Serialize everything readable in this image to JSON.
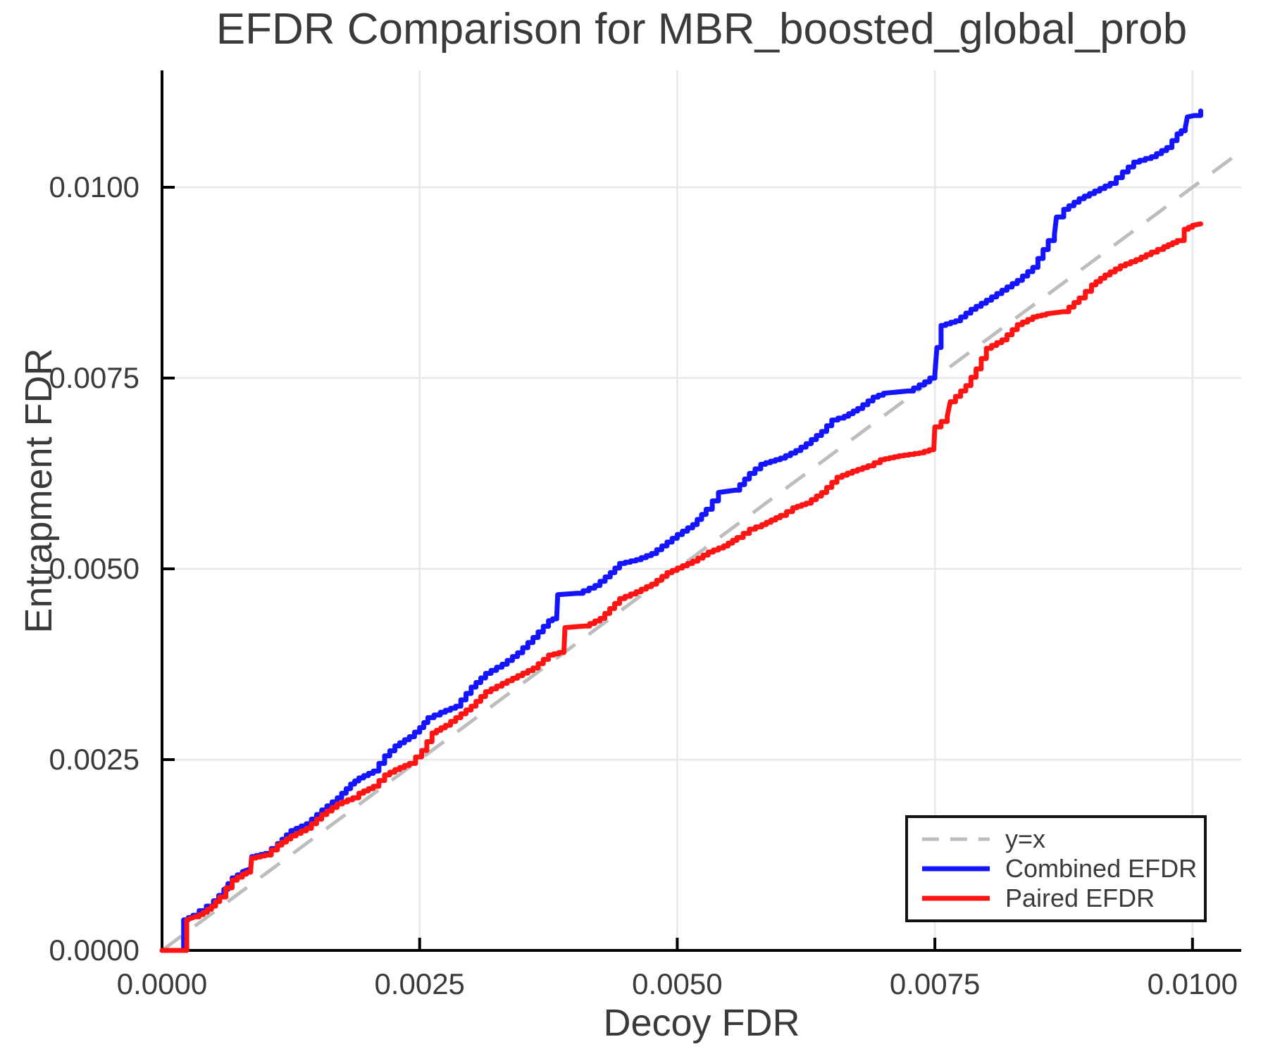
{
  "chart_data": {
    "type": "line",
    "title": "EFDR Comparison for MBR_boosted_global_prob",
    "xlabel": "Decoy FDR",
    "ylabel": "Entrapment FDR",
    "xlim": [
      0,
      0.010473
    ],
    "ylim": [
      0,
      0.011531
    ],
    "x_ticks": [
      0,
      0.0025,
      0.005,
      0.0075,
      0.01
    ],
    "x_tick_labels": [
      "0.0000",
      "0.0025",
      "0.0050",
      "0.0075",
      "0.0100"
    ],
    "y_ticks": [
      0,
      0.0025,
      0.005,
      0.0075,
      0.01
    ],
    "y_tick_labels": [
      "0.0000",
      "0.0025",
      "0.0050",
      "0.0075",
      "0.0100"
    ],
    "grid": true,
    "grid_color": "#e8e8e8",
    "axis_color": "#000000",
    "text_color": "#3a3a3a",
    "legend": {
      "position": "lower right",
      "border_color": "#111111"
    },
    "ref_line": {
      "label": "y=x",
      "style": "dashed",
      "color": "#bdbdbd",
      "from": [
        0,
        0
      ],
      "to": [
        0.010473,
        0.010473
      ]
    },
    "series": [
      {
        "name": "Combined EFDR",
        "color": "#1414ff",
        "points": [
          [
            0.0,
            0.0
          ],
          [
            0.00021,
            0.0
          ],
          [
            0.00021,
            0.0004
          ],
          [
            0.0003,
            0.00046
          ],
          [
            0.00036,
            0.00052
          ],
          [
            0.00043,
            0.00058
          ],
          [
            0.0005,
            0.00065
          ],
          [
            0.00055,
            0.00072
          ],
          [
            0.0006,
            0.0008
          ],
          [
            0.00068,
            0.00095
          ],
          [
            0.00078,
            0.00103
          ],
          [
            0.00086,
            0.00107
          ],
          [
            0.00087,
            0.00123
          ],
          [
            0.001,
            0.00127
          ],
          [
            0.00112,
            0.0014
          ],
          [
            0.00125,
            0.00157
          ],
          [
            0.0014,
            0.00166
          ],
          [
            0.00155,
            0.00184
          ],
          [
            0.0017,
            0.002
          ],
          [
            0.00183,
            0.00218
          ],
          [
            0.00191,
            0.00226
          ],
          [
            0.00205,
            0.00235
          ],
          [
            0.00216,
            0.00255
          ],
          [
            0.00226,
            0.00268
          ],
          [
            0.0024,
            0.0028
          ],
          [
            0.0025,
            0.00292
          ],
          [
            0.00258,
            0.00305
          ],
          [
            0.0027,
            0.00312
          ],
          [
            0.00285,
            0.0032
          ],
          [
            0.003,
            0.00345
          ],
          [
            0.00314,
            0.00363
          ],
          [
            0.0033,
            0.00375
          ],
          [
            0.00345,
            0.0039
          ],
          [
            0.0036,
            0.0041
          ],
          [
            0.00375,
            0.00432
          ],
          [
            0.00383,
            0.00437
          ],
          [
            0.00384,
            0.00466
          ],
          [
            0.00403,
            0.00468
          ],
          [
            0.0042,
            0.00478
          ],
          [
            0.00435,
            0.00495
          ],
          [
            0.00444,
            0.00507
          ],
          [
            0.0046,
            0.00512
          ],
          [
            0.00475,
            0.0052
          ],
          [
            0.0049,
            0.00535
          ],
          [
            0.005,
            0.00545
          ],
          [
            0.00515,
            0.00558
          ],
          [
            0.00528,
            0.00578
          ],
          [
            0.0054,
            0.006
          ],
          [
            0.00556,
            0.00603
          ],
          [
            0.0057,
            0.00625
          ],
          [
            0.00581,
            0.00637
          ],
          [
            0.006,
            0.00645
          ],
          [
            0.00615,
            0.00655
          ],
          [
            0.00625,
            0.00664
          ],
          [
            0.0064,
            0.0068
          ],
          [
            0.0065,
            0.00695
          ],
          [
            0.00662,
            0.007
          ],
          [
            0.00675,
            0.0071
          ],
          [
            0.0069,
            0.00725
          ],
          [
            0.007,
            0.0073
          ],
          [
            0.00724,
            0.00733
          ],
          [
            0.0074,
            0.00745
          ],
          [
            0.0075,
            0.00755
          ],
          [
            0.00752,
            0.0079
          ],
          [
            0.00756,
            0.00819
          ],
          [
            0.0077,
            0.00825
          ],
          [
            0.00785,
            0.0084
          ],
          [
            0.008,
            0.00852
          ],
          [
            0.00815,
            0.00865
          ],
          [
            0.0083,
            0.00878
          ],
          [
            0.00845,
            0.00895
          ],
          [
            0.0086,
            0.0093
          ],
          [
            0.00866,
            0.00938
          ],
          [
            0.00868,
            0.00961
          ],
          [
            0.00875,
            0.00971
          ],
          [
            0.0089,
            0.00985
          ],
          [
            0.00905,
            0.00995
          ],
          [
            0.0092,
            0.01005
          ],
          [
            0.00932,
            0.0102
          ],
          [
            0.00943,
            0.01033
          ],
          [
            0.0096,
            0.0104
          ],
          [
            0.00975,
            0.01052
          ],
          [
            0.00985,
            0.0107
          ],
          [
            0.00993,
            0.01078
          ],
          [
            0.00995,
            0.01092
          ],
          [
            0.01002,
            0.01094
          ],
          [
            0.01008,
            0.011
          ]
        ]
      },
      {
        "name": "Paired EFDR",
        "color": "#ff1414",
        "points": [
          [
            0.0,
            0.0
          ],
          [
            0.00024,
            0.0
          ],
          [
            0.00024,
            0.0004
          ],
          [
            0.00032,
            0.00044
          ],
          [
            0.0004,
            0.0005
          ],
          [
            0.00048,
            0.00058
          ],
          [
            0.00056,
            0.0007
          ],
          [
            0.00062,
            0.00082
          ],
          [
            0.00068,
            0.00092
          ],
          [
            0.00078,
            0.001
          ],
          [
            0.00086,
            0.00105
          ],
          [
            0.00087,
            0.00121
          ],
          [
            0.001,
            0.00125
          ],
          [
            0.00112,
            0.00138
          ],
          [
            0.00125,
            0.0015
          ],
          [
            0.0014,
            0.0016
          ],
          [
            0.00155,
            0.00178
          ],
          [
            0.0017,
            0.00192
          ],
          [
            0.00185,
            0.002
          ],
          [
            0.00191,
            0.00206
          ],
          [
            0.00205,
            0.00215
          ],
          [
            0.00216,
            0.0023
          ],
          [
            0.00226,
            0.00237
          ],
          [
            0.0024,
            0.00245
          ],
          [
            0.00252,
            0.00262
          ],
          [
            0.00262,
            0.00285
          ],
          [
            0.00275,
            0.00295
          ],
          [
            0.0029,
            0.0031
          ],
          [
            0.003,
            0.0032
          ],
          [
            0.00314,
            0.00339
          ],
          [
            0.0033,
            0.0035
          ],
          [
            0.00345,
            0.0036
          ],
          [
            0.0036,
            0.0037
          ],
          [
            0.00375,
            0.00387
          ],
          [
            0.0039,
            0.00392
          ],
          [
            0.00391,
            0.00423
          ],
          [
            0.0041,
            0.00425
          ],
          [
            0.00425,
            0.00435
          ],
          [
            0.00444,
            0.00461
          ],
          [
            0.0046,
            0.0047
          ],
          [
            0.00475,
            0.0048
          ],
          [
            0.0049,
            0.00495
          ],
          [
            0.005,
            0.00501
          ],
          [
            0.00515,
            0.0051
          ],
          [
            0.0053,
            0.00522
          ],
          [
            0.00545,
            0.0053
          ],
          [
            0.00558,
            0.00541
          ],
          [
            0.0057,
            0.00552
          ],
          [
            0.00582,
            0.00558
          ],
          [
            0.006,
            0.0057
          ],
          [
            0.00612,
            0.0058
          ],
          [
            0.00625,
            0.00586
          ],
          [
            0.0064,
            0.006
          ],
          [
            0.00655,
            0.0062
          ],
          [
            0.0067,
            0.00628
          ],
          [
            0.00685,
            0.00635
          ],
          [
            0.00697,
            0.00643
          ],
          [
            0.00715,
            0.00648
          ],
          [
            0.00735,
            0.00652
          ],
          [
            0.00749,
            0.00658
          ],
          [
            0.0075,
            0.00686
          ],
          [
            0.00762,
            0.007
          ],
          [
            0.00765,
            0.00719
          ],
          [
            0.0078,
            0.0074
          ],
          [
            0.0079,
            0.00762
          ],
          [
            0.008,
            0.00789
          ],
          [
            0.00815,
            0.008
          ],
          [
            0.0083,
            0.0082
          ],
          [
            0.00845,
            0.0083
          ],
          [
            0.00858,
            0.00834
          ],
          [
            0.00875,
            0.00837
          ],
          [
            0.0089,
            0.00855
          ],
          [
            0.00902,
            0.00872
          ],
          [
            0.00915,
            0.00885
          ],
          [
            0.0093,
            0.00897
          ],
          [
            0.00945,
            0.00905
          ],
          [
            0.0096,
            0.00915
          ],
          [
            0.00972,
            0.00922
          ],
          [
            0.00985,
            0.0093
          ],
          [
            0.00992,
            0.00945
          ],
          [
            0.01,
            0.0095
          ],
          [
            0.01008,
            0.00952
          ]
        ]
      }
    ]
  }
}
